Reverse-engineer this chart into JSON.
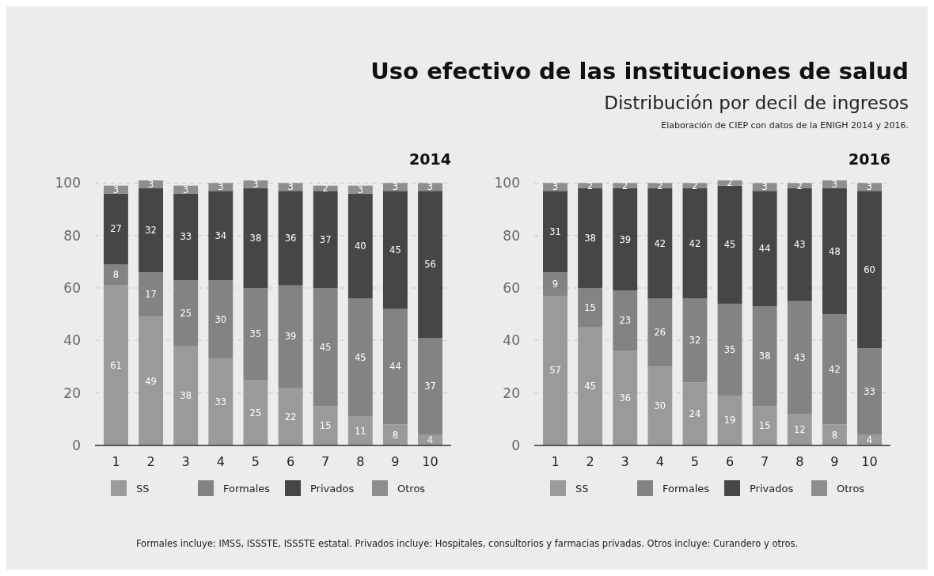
{
  "chart_data": [
    {
      "type": "other",
      "title": "Uso efectivo de las instituciones de salud",
      "subtitle": "Distribución por decil de ingresos",
      "annotations": [
        "Elaboración de CIEP con datos de la ENIGH 2014 y 2016.",
        "Formales incluye: IMSS, ISSSTE, ISSSTE estatal. Privados incluye: Hospitales, consultorios y farmacias privadas. Otros incluye: Curandero y otros."
      ]
    },
    {
      "type": "bar",
      "title": "2014",
      "stacked": true,
      "categories": [
        "1",
        "2",
        "3",
        "4",
        "5",
        "6",
        "7",
        "8",
        "9",
        "10"
      ],
      "ylim": [
        0,
        101
      ],
      "yticks": [
        0,
        20,
        40,
        60,
        80,
        100
      ],
      "grid": "y",
      "legend": "bottom",
      "data_labels": true,
      "series": [
        {
          "name": "SS",
          "color": "#9a9a9a",
          "values": [
            61,
            49,
            38,
            33,
            25,
            22,
            15,
            11,
            8,
            4
          ]
        },
        {
          "name": "Formales",
          "color": "#838383",
          "values": [
            8,
            17,
            25,
            30,
            35,
            39,
            45,
            45,
            44,
            37
          ]
        },
        {
          "name": "Privados",
          "color": "#464646",
          "values": [
            27,
            32,
            33,
            34,
            38,
            36,
            37,
            40,
            45,
            56
          ]
        },
        {
          "name": "Otros",
          "color": "#8e8e8e",
          "values": [
            3,
            3,
            3,
            3,
            3,
            3,
            2,
            3,
            3,
            3
          ]
        }
      ]
    },
    {
      "type": "bar",
      "title": "2016",
      "stacked": true,
      "categories": [
        "1",
        "2",
        "3",
        "4",
        "5",
        "6",
        "7",
        "8",
        "9",
        "10"
      ],
      "ylim": [
        0,
        101
      ],
      "yticks": [
        0,
        20,
        40,
        60,
        80,
        100
      ],
      "grid": "y",
      "legend": "bottom",
      "data_labels": true,
      "series": [
        {
          "name": "SS",
          "color": "#9a9a9a",
          "values": [
            57,
            45,
            36,
            30,
            24,
            19,
            15,
            12,
            8,
            4
          ]
        },
        {
          "name": "Formales",
          "color": "#838383",
          "values": [
            9,
            15,
            23,
            26,
            32,
            35,
            38,
            43,
            42,
            33
          ]
        },
        {
          "name": "Privados",
          "color": "#464646",
          "values": [
            31,
            38,
            39,
            42,
            42,
            45,
            44,
            43,
            48,
            60
          ]
        },
        {
          "name": "Otros",
          "color": "#8e8e8e",
          "values": [
            3,
            2,
            2,
            2,
            2,
            2,
            3,
            2,
            3,
            3
          ]
        }
      ]
    }
  ]
}
